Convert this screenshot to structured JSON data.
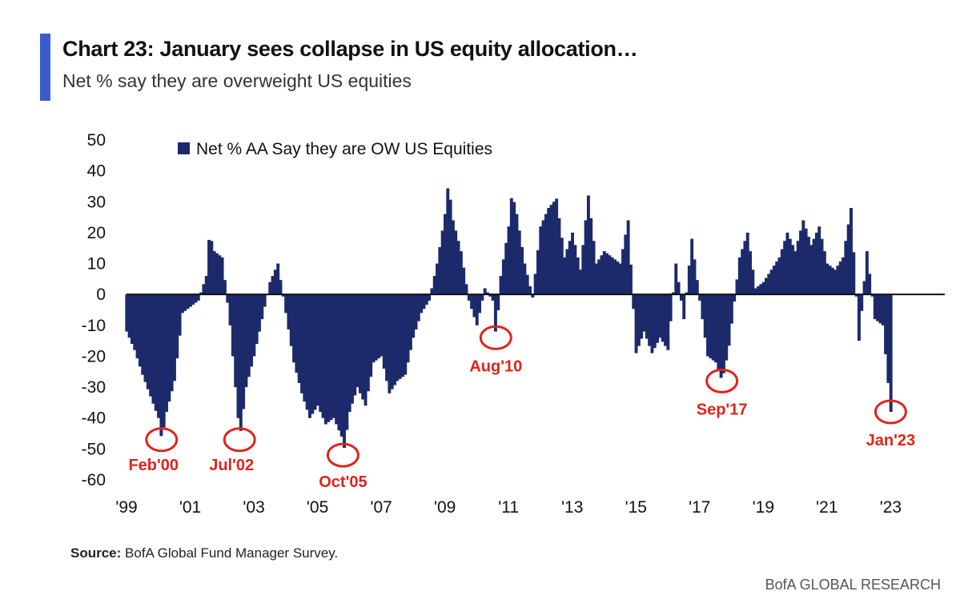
{
  "header": {
    "title": "Chart 23: January sees collapse in US equity allocation…",
    "subtitle": "Net % say they are overweight US equities"
  },
  "source": {
    "label": "Source:",
    "text": " BofA Global Fund Manager Survey."
  },
  "footer": {
    "brand": "BofA GLOBAL RESEARCH"
  },
  "colors": {
    "bar": "#1c2a6b",
    "annotation": "#e0231a",
    "accent": "#3a5ccc"
  },
  "chart_data": {
    "type": "bar",
    "title": "",
    "xlabel": "",
    "ylabel": "",
    "ylim": [
      -60,
      50
    ],
    "yticks": [
      50,
      40,
      30,
      20,
      10,
      0,
      -10,
      -20,
      -30,
      -40,
      -50,
      -60
    ],
    "xlim": [
      1999.0,
      2024.7
    ],
    "xticks": [
      {
        "label": "'99",
        "year": 1999
      },
      {
        "label": "'01",
        "year": 2001
      },
      {
        "label": "'03",
        "year": 2003
      },
      {
        "label": "'05",
        "year": 2005
      },
      {
        "label": "'07",
        "year": 2007
      },
      {
        "label": "'09",
        "year": 2009
      },
      {
        "label": "'11",
        "year": 2011
      },
      {
        "label": "'13",
        "year": 2013
      },
      {
        "label": "'15",
        "year": 2015
      },
      {
        "label": "'17",
        "year": 2017
      },
      {
        "label": "'19",
        "year": 2019
      },
      {
        "label": "'21",
        "year": 2021
      },
      {
        "label": "'23",
        "year": 2023
      }
    ],
    "grid": false,
    "legend_position": "top",
    "series": [
      {
        "name": "Net % AA Say they are OW US Equities",
        "points": [
          [
            1999.0,
            -12
          ],
          [
            1999.25,
            -18
          ],
          [
            1999.5,
            -26
          ],
          [
            1999.75,
            -33
          ],
          [
            2000.0,
            -40
          ],
          [
            2000.1,
            -47
          ],
          [
            2000.25,
            -38
          ],
          [
            2000.5,
            -28
          ],
          [
            2000.75,
            -6
          ],
          [
            2001.0,
            -4
          ],
          [
            2001.25,
            -2
          ],
          [
            2001.5,
            6
          ],
          [
            2001.6,
            20
          ],
          [
            2001.75,
            14
          ],
          [
            2002.0,
            12
          ],
          [
            2002.25,
            -10
          ],
          [
            2002.5,
            -40
          ],
          [
            2002.55,
            -47
          ],
          [
            2002.75,
            -30
          ],
          [
            2003.0,
            -20
          ],
          [
            2003.25,
            -8
          ],
          [
            2003.5,
            4
          ],
          [
            2003.75,
            10
          ],
          [
            2004.0,
            -6
          ],
          [
            2004.25,
            -22
          ],
          [
            2004.5,
            -32
          ],
          [
            2004.75,
            -40
          ],
          [
            2005.0,
            -36
          ],
          [
            2005.25,
            -42
          ],
          [
            2005.5,
            -40
          ],
          [
            2005.75,
            -46
          ],
          [
            2005.8,
            -52
          ],
          [
            2006.0,
            -38
          ],
          [
            2006.25,
            -30
          ],
          [
            2006.5,
            -36
          ],
          [
            2006.75,
            -22
          ],
          [
            2007.0,
            -20
          ],
          [
            2007.25,
            -32
          ],
          [
            2007.5,
            -28
          ],
          [
            2007.75,
            -26
          ],
          [
            2008.0,
            -14
          ],
          [
            2008.25,
            -6
          ],
          [
            2008.5,
            -2
          ],
          [
            2008.75,
            10
          ],
          [
            2009.0,
            26
          ],
          [
            2009.1,
            36
          ],
          [
            2009.25,
            24
          ],
          [
            2009.5,
            14
          ],
          [
            2009.75,
            -2
          ],
          [
            2010.0,
            -10
          ],
          [
            2010.25,
            2
          ],
          [
            2010.5,
            -2
          ],
          [
            2010.6,
            -14
          ],
          [
            2010.75,
            6
          ],
          [
            2011.0,
            22
          ],
          [
            2011.1,
            33
          ],
          [
            2011.25,
            26
          ],
          [
            2011.5,
            10
          ],
          [
            2011.75,
            -1
          ],
          [
            2012.0,
            22
          ],
          [
            2012.25,
            28
          ],
          [
            2012.5,
            31
          ],
          [
            2012.75,
            12
          ],
          [
            2013.0,
            20
          ],
          [
            2013.25,
            8
          ],
          [
            2013.5,
            32
          ],
          [
            2013.75,
            10
          ],
          [
            2014.0,
            14
          ],
          [
            2014.25,
            12
          ],
          [
            2014.5,
            10
          ],
          [
            2014.75,
            24
          ],
          [
            2015.0,
            -19
          ],
          [
            2015.25,
            -12
          ],
          [
            2015.5,
            -19
          ],
          [
            2015.75,
            -14
          ],
          [
            2016.0,
            -18
          ],
          [
            2016.25,
            10
          ],
          [
            2016.5,
            -8
          ],
          [
            2016.75,
            18
          ],
          [
            2017.0,
            -2
          ],
          [
            2017.25,
            -20
          ],
          [
            2017.5,
            -22
          ],
          [
            2017.7,
            -28
          ],
          [
            2017.9,
            -18
          ],
          [
            2018.25,
            12
          ],
          [
            2018.5,
            20
          ],
          [
            2018.75,
            2
          ],
          [
            2019.0,
            4
          ],
          [
            2019.25,
            8
          ],
          [
            2019.5,
            12
          ],
          [
            2019.75,
            20
          ],
          [
            2020.0,
            14
          ],
          [
            2020.25,
            24
          ],
          [
            2020.5,
            16
          ],
          [
            2020.75,
            22
          ],
          [
            2021.0,
            10
          ],
          [
            2021.25,
            8
          ],
          [
            2021.5,
            12
          ],
          [
            2021.75,
            28
          ],
          [
            2022.0,
            -15
          ],
          [
            2022.25,
            14
          ],
          [
            2022.5,
            -8
          ],
          [
            2022.75,
            -10
          ],
          [
            2023.0,
            -38
          ]
        ]
      }
    ],
    "annotations": [
      {
        "text": "Feb'00",
        "x": 2000.1,
        "y": -47
      },
      {
        "text": "Jul'02",
        "x": 2002.55,
        "y": -47
      },
      {
        "text": "Oct'05",
        "x": 2005.8,
        "y": -52
      },
      {
        "text": "Aug'10",
        "x": 2010.6,
        "y": -14
      },
      {
        "text": "Sep'17",
        "x": 2017.7,
        "y": -28
      },
      {
        "text": "Jan'23",
        "x": 2023.0,
        "y": -38
      }
    ]
  }
}
